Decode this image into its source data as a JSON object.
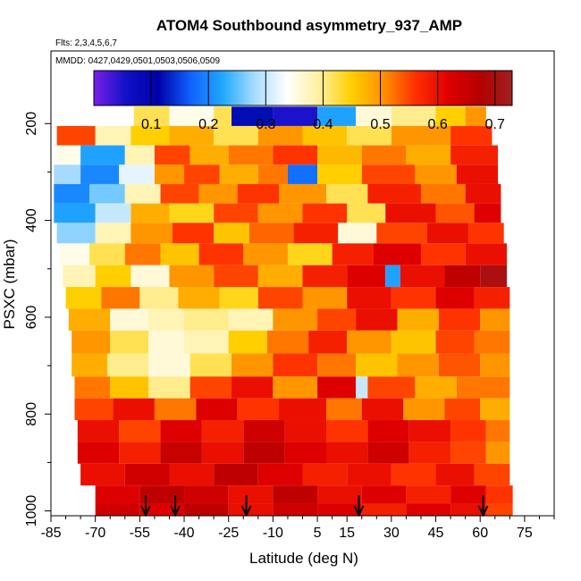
{
  "chart_data": {
    "type": "heatmap",
    "title": "ATOM4 Southbound asymmetry_937_AMP",
    "flights_label": "Flts: 2,3,4,5,6,7",
    "dates_label": "MMDD: 0427,0429,0501,0503,0506,0509",
    "xlabel": "Latitude (deg N)",
    "ylabel": "PSXC (mbar)",
    "xlim": [
      -85,
      85
    ],
    "ylim": [
      1010,
      50
    ],
    "x_ticks": [
      -85,
      -70,
      -55,
      -40,
      -25,
      -10,
      5,
      15,
      30,
      45,
      60,
      75
    ],
    "y_ticks": [
      200,
      400,
      600,
      800,
      1000
    ],
    "colorbar": {
      "range": [
        0.0,
        0.73
      ],
      "ticks": [
        0.1,
        0.2,
        0.3,
        0.4,
        0.5,
        0.6,
        0.7
      ],
      "colors": [
        "#7b1fe8",
        "#1010c8",
        "#0000a8",
        "#1060ff",
        "#20a8ff",
        "#a8dcff",
        "#ffffff",
        "#fff0a0",
        "#ffd000",
        "#ff9000",
        "#ff3000",
        "#e00000",
        "#b40000",
        "#a02020"
      ]
    },
    "profile_latitudes": [
      -53,
      -43,
      -19,
      19,
      61
    ],
    "bands": [
      {
        "pressure": 185,
        "lat_min": -57,
        "lat_max": 62,
        "segments": [
          [
            -57,
            0.42
          ],
          [
            -45,
            0.35
          ],
          [
            -30,
            0.42
          ],
          [
            -24,
            0.12
          ],
          [
            -10,
            0.05
          ],
          [
            5,
            0.22
          ],
          [
            18,
            0.36
          ],
          [
            30,
            0.4
          ],
          [
            45,
            0.45
          ],
          [
            55,
            0.5
          ]
        ]
      },
      {
        "pressure": 225,
        "lat_min": -83,
        "lat_max": 64,
        "segments": [
          [
            -83,
            0.55
          ],
          [
            -70,
            0.38
          ],
          [
            -58,
            0.45
          ],
          [
            -45,
            0.48
          ],
          [
            -30,
            0.42
          ],
          [
            -15,
            0.5
          ],
          [
            0,
            0.46
          ],
          [
            15,
            0.42
          ],
          [
            30,
            0.5
          ],
          [
            50,
            0.56
          ]
        ]
      },
      {
        "pressure": 265,
        "lat_min": -83,
        "lat_max": 66,
        "segments": [
          [
            -83,
            0.35
          ],
          [
            -75,
            0.22
          ],
          [
            -60,
            0.38
          ],
          [
            -50,
            0.55
          ],
          [
            -38,
            0.48
          ],
          [
            -25,
            0.52
          ],
          [
            -10,
            0.56
          ],
          [
            5,
            0.47
          ],
          [
            20,
            0.52
          ],
          [
            35,
            0.48
          ],
          [
            50,
            0.58
          ]
        ]
      },
      {
        "pressure": 305,
        "lat_min": -84,
        "lat_max": 66,
        "segments": [
          [
            -84,
            0.28
          ],
          [
            -75,
            0.2
          ],
          [
            -62,
            0.32
          ],
          [
            -50,
            0.5
          ],
          [
            -40,
            0.55
          ],
          [
            -28,
            0.48
          ],
          [
            -15,
            0.52
          ],
          [
            -5,
            0.18
          ],
          [
            5,
            0.45
          ],
          [
            20,
            0.55
          ],
          [
            38,
            0.5
          ],
          [
            52,
            0.6
          ]
        ]
      },
      {
        "pressure": 345,
        "lat_min": -84,
        "lat_max": 67,
        "segments": [
          [
            -84,
            0.2
          ],
          [
            -72,
            0.26
          ],
          [
            -60,
            0.38
          ],
          [
            -48,
            0.55
          ],
          [
            -35,
            0.5
          ],
          [
            -22,
            0.56
          ],
          [
            -8,
            0.5
          ],
          [
            8,
            0.42
          ],
          [
            22,
            0.58
          ],
          [
            40,
            0.52
          ],
          [
            55,
            0.6
          ]
        ]
      },
      {
        "pressure": 385,
        "lat_min": -84,
        "lat_max": 67,
        "segments": [
          [
            -84,
            0.22
          ],
          [
            -70,
            0.3
          ],
          [
            -58,
            0.48
          ],
          [
            -45,
            0.44
          ],
          [
            -30,
            0.55
          ],
          [
            -15,
            0.5
          ],
          [
            0,
            0.56
          ],
          [
            15,
            0.42
          ],
          [
            28,
            0.6
          ],
          [
            45,
            0.54
          ],
          [
            58,
            0.62
          ]
        ]
      },
      {
        "pressure": 425,
        "lat_min": -83,
        "lat_max": 68,
        "segments": [
          [
            -83,
            0.27
          ],
          [
            -70,
            0.38
          ],
          [
            -58,
            0.5
          ],
          [
            -44,
            0.56
          ],
          [
            -30,
            0.46
          ],
          [
            -18,
            0.53
          ],
          [
            -3,
            0.58
          ],
          [
            12,
            0.36
          ],
          [
            25,
            0.55
          ],
          [
            42,
            0.6
          ],
          [
            56,
            0.56
          ]
        ]
      },
      {
        "pressure": 470,
        "lat_min": -82,
        "lat_max": 69,
        "segments": [
          [
            -82,
            0.35
          ],
          [
            -72,
            0.42
          ],
          [
            -60,
            0.52
          ],
          [
            -48,
            0.46
          ],
          [
            -35,
            0.56
          ],
          [
            -20,
            0.5
          ],
          [
            -5,
            0.44
          ],
          [
            10,
            0.58
          ],
          [
            24,
            0.62
          ],
          [
            40,
            0.56
          ],
          [
            55,
            0.6
          ]
        ]
      },
      {
        "pressure": 515,
        "lat_min": -81,
        "lat_max": 69,
        "segments": [
          [
            -81,
            0.38
          ],
          [
            -70,
            0.45
          ],
          [
            -58,
            0.36
          ],
          [
            -45,
            0.5
          ],
          [
            -30,
            0.55
          ],
          [
            -15,
            0.48
          ],
          [
            0,
            0.58
          ],
          [
            15,
            0.62
          ],
          [
            28,
            0.22
          ],
          [
            33,
            0.6
          ],
          [
            48,
            0.66
          ],
          [
            60,
            0.7
          ]
        ]
      },
      {
        "pressure": 560,
        "lat_min": -80,
        "lat_max": 70,
        "segments": [
          [
            -80,
            0.45
          ],
          [
            -68,
            0.52
          ],
          [
            -55,
            0.4
          ],
          [
            -42,
            0.48
          ],
          [
            -28,
            0.44
          ],
          [
            -15,
            0.55
          ],
          [
            0,
            0.5
          ],
          [
            15,
            0.6
          ],
          [
            30,
            0.56
          ],
          [
            45,
            0.62
          ],
          [
            58,
            0.58
          ]
        ]
      },
      {
        "pressure": 605,
        "lat_min": -79,
        "lat_max": 70,
        "segments": [
          [
            -79,
            0.48
          ],
          [
            -65,
            0.36
          ],
          [
            -52,
            0.38
          ],
          [
            -40,
            0.4
          ],
          [
            -25,
            0.38
          ],
          [
            -10,
            0.5
          ],
          [
            5,
            0.55
          ],
          [
            18,
            0.6
          ],
          [
            32,
            0.48
          ],
          [
            46,
            0.56
          ],
          [
            60,
            0.5
          ]
        ]
      },
      {
        "pressure": 650,
        "lat_min": -78,
        "lat_max": 70,
        "segments": [
          [
            -78,
            0.5
          ],
          [
            -65,
            0.42
          ],
          [
            -52,
            0.36
          ],
          [
            -40,
            0.38
          ],
          [
            -25,
            0.45
          ],
          [
            -12,
            0.52
          ],
          [
            2,
            0.58
          ],
          [
            15,
            0.5
          ],
          [
            30,
            0.46
          ],
          [
            45,
            0.55
          ],
          [
            58,
            0.52
          ]
        ]
      },
      {
        "pressure": 700,
        "lat_min": -78,
        "lat_max": 70,
        "segments": [
          [
            -78,
            0.48
          ],
          [
            -66,
            0.4
          ],
          [
            -52,
            0.36
          ],
          [
            -38,
            0.42
          ],
          [
            -24,
            0.5
          ],
          [
            -10,
            0.56
          ],
          [
            5,
            0.52
          ],
          [
            18,
            0.46
          ],
          [
            32,
            0.5
          ],
          [
            46,
            0.54
          ],
          [
            60,
            0.5
          ]
        ]
      },
      {
        "pressure": 745,
        "lat_min": -77,
        "lat_max": 70,
        "segments": [
          [
            -77,
            0.52
          ],
          [
            -65,
            0.46
          ],
          [
            -52,
            0.4
          ],
          [
            -38,
            0.55
          ],
          [
            -24,
            0.6
          ],
          [
            -10,
            0.5
          ],
          [
            5,
            0.62
          ],
          [
            18,
            0.3
          ],
          [
            22,
            0.55
          ],
          [
            38,
            0.48
          ],
          [
            52,
            0.52
          ]
        ]
      },
      {
        "pressure": 790,
        "lat_min": -77,
        "lat_max": 70,
        "segments": [
          [
            -77,
            0.55
          ],
          [
            -64,
            0.6
          ],
          [
            -50,
            0.52
          ],
          [
            -36,
            0.62
          ],
          [
            -22,
            0.56
          ],
          [
            -8,
            0.6
          ],
          [
            8,
            0.52
          ],
          [
            20,
            0.6
          ],
          [
            34,
            0.5
          ],
          [
            48,
            0.55
          ],
          [
            60,
            0.48
          ]
        ]
      },
      {
        "pressure": 835,
        "lat_min": -76,
        "lat_max": 70,
        "segments": [
          [
            -76,
            0.6
          ],
          [
            -62,
            0.55
          ],
          [
            -48,
            0.62
          ],
          [
            -34,
            0.58
          ],
          [
            -20,
            0.64
          ],
          [
            -6,
            0.6
          ],
          [
            8,
            0.56
          ],
          [
            22,
            0.62
          ],
          [
            36,
            0.6
          ],
          [
            50,
            0.56
          ],
          [
            62,
            0.52
          ]
        ]
      },
      {
        "pressure": 880,
        "lat_min": -76,
        "lat_max": 70,
        "segments": [
          [
            -76,
            0.62
          ],
          [
            -62,
            0.58
          ],
          [
            -48,
            0.65
          ],
          [
            -34,
            0.6
          ],
          [
            -20,
            0.66
          ],
          [
            -6,
            0.62
          ],
          [
            8,
            0.6
          ],
          [
            22,
            0.64
          ],
          [
            36,
            0.58
          ],
          [
            50,
            0.55
          ],
          [
            62,
            0.5
          ]
        ]
      },
      {
        "pressure": 925,
        "lat_min": -75,
        "lat_max": 70,
        "segments": [
          [
            -75,
            0.6
          ],
          [
            -60,
            0.64
          ],
          [
            -45,
            0.6
          ],
          [
            -30,
            0.66
          ],
          [
            -15,
            0.62
          ],
          [
            0,
            0.58
          ],
          [
            15,
            0.6
          ],
          [
            30,
            0.56
          ],
          [
            45,
            0.6
          ],
          [
            58,
            0.55
          ]
        ]
      },
      {
        "pressure": 970,
        "lat_min": -70,
        "lat_max": 71,
        "segments": [
          [
            -70,
            0.62
          ],
          [
            -55,
            0.66
          ],
          [
            -40,
            0.64
          ],
          [
            -25,
            0.6
          ],
          [
            -10,
            0.66
          ],
          [
            5,
            0.6
          ],
          [
            20,
            0.62
          ],
          [
            35,
            0.58
          ],
          [
            50,
            0.62
          ],
          [
            62,
            0.56
          ]
        ]
      },
      {
        "pressure": 1000,
        "lat_min": -70,
        "lat_max": 71,
        "segments": [
          [
            -70,
            0.64
          ],
          [
            -55,
            0.62
          ],
          [
            -40,
            0.66
          ],
          [
            -25,
            0.6
          ],
          [
            -10,
            0.64
          ],
          [
            5,
            0.62
          ],
          [
            20,
            0.58
          ],
          [
            35,
            0.62
          ],
          [
            50,
            0.6
          ],
          [
            62,
            0.55
          ]
        ]
      }
    ]
  }
}
